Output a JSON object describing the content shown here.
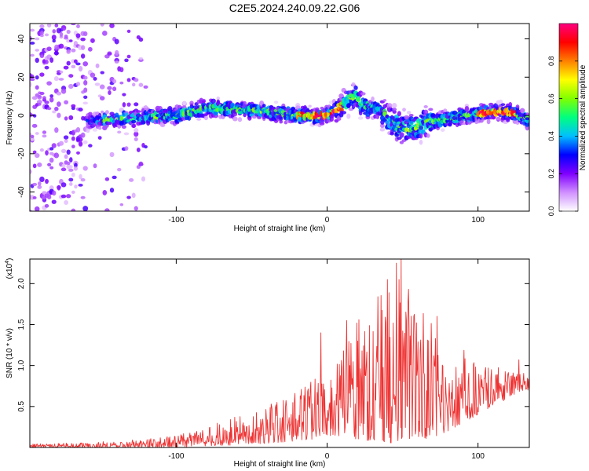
{
  "title": "C2E5.2024.240.09.22.G06",
  "chart_data": [
    {
      "type": "heatmap",
      "xlabel": "Height of straight line (km)",
      "ylabel": "Frequency (Hz)",
      "xlim": [
        -197,
        134
      ],
      "ylim": [
        -50,
        48
      ],
      "xticks": [
        -100,
        0,
        100
      ],
      "yticks": [
        -40,
        -20,
        0,
        20,
        40
      ],
      "xtick_labels": [
        "-100",
        "0",
        "100"
      ],
      "ytick_labels": [
        "-40",
        "-20",
        "0",
        "20",
        "40"
      ],
      "colorbar": {
        "label": "Normalized spectral amplitude",
        "range": [
          0,
          1
        ],
        "ticks": [
          0,
          0.2,
          0.4,
          0.6,
          0.8
        ],
        "tick_labels": [
          "0.0",
          "0.2",
          "0.4",
          "0.6",
          "0.8"
        ],
        "colors": [
          "#ffffff",
          "#d090ff",
          "#8000ff",
          "#0000ff",
          "#00c0ff",
          "#00ff80",
          "#80ff00",
          "#ffff00",
          "#ff8000",
          "#ff0000",
          "#ff0080"
        ]
      },
      "ridge_trace": {
        "x": [
          -160,
          -140,
          -120,
          -100,
          -80,
          -60,
          -40,
          -20,
          0,
          10,
          18,
          25,
          35,
          45,
          55,
          65,
          80,
          100,
          115,
          125,
          134
        ],
        "y": [
          -3,
          -2,
          -1,
          0,
          4,
          3,
          2,
          0,
          0,
          5,
          10,
          5,
          2,
          -4,
          -8,
          -4,
          -2,
          1,
          2,
          1,
          -3
        ]
      },
      "grid": false
    },
    {
      "type": "line",
      "xlabel": "Height of straight line (km)",
      "ylabel": "SNR (10 * v/v)",
      "scale_note_base": "(x10",
      "scale_note_exp": "4",
      "scale_note_close": ")",
      "xlim": [
        -197,
        134
      ],
      "ylim": [
        0,
        2.3
      ],
      "xticks": [
        -100,
        0,
        100
      ],
      "yticks": [
        0.5,
        1.0,
        1.5,
        2.0
      ],
      "xtick_labels": [
        "-100",
        "0",
        "100"
      ],
      "ytick_labels": [
        "0.5",
        "1.0",
        "1.5",
        "2.0"
      ],
      "series": [
        {
          "color": "#ee3333",
          "envelope": {
            "x": [
              -197,
              -160,
              -120,
              -100,
              -80,
              -60,
              -40,
              -20,
              -10,
              0,
              10,
              20,
              30,
              40,
              45,
              50,
              55,
              60,
              70,
              80,
              90,
              100,
              110,
              120,
              130,
              134
            ],
            "y_low": [
              0.0,
              0.0,
              0.0,
              0.0,
              0.02,
              0.03,
              0.05,
              0.08,
              0.1,
              0.15,
              0.12,
              0.1,
              0.08,
              0.06,
              0.04,
              0.05,
              0.06,
              0.08,
              0.12,
              0.2,
              0.3,
              0.4,
              0.5,
              0.6,
              0.7,
              0.7
            ],
            "y_high": [
              0.04,
              0.06,
              0.1,
              0.15,
              0.25,
              0.38,
              0.5,
              0.72,
              0.85,
              0.8,
              1.15,
              1.55,
              1.75,
              2.05,
              2.25,
              2.3,
              1.95,
              1.75,
              1.55,
              1.35,
              1.2,
              1.05,
              1.0,
              0.95,
              0.95,
              0.85
            ]
          },
          "spikes": [
            {
              "x": -4,
              "y": 1.4
            },
            {
              "x": 13,
              "y": 1.55
            },
            {
              "x": 40,
              "y": 2.05
            },
            {
              "x": 46,
              "y": 2.25
            },
            {
              "x": 49,
              "y": 2.3
            },
            {
              "x": 73,
              "y": 1.6
            },
            {
              "x": 127,
              "y": 1.07
            }
          ]
        }
      ],
      "grid": false
    }
  ]
}
